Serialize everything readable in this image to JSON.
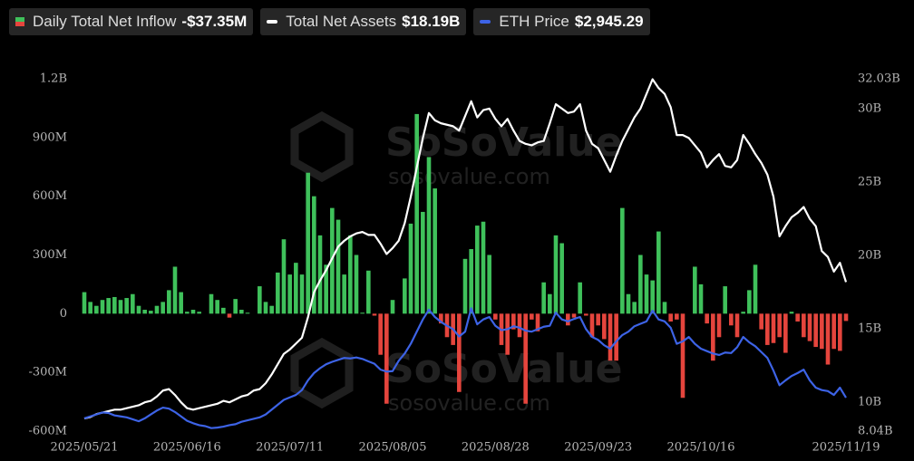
{
  "chart_data": {
    "type": "bar",
    "watermark": "SoSoValue",
    "watermark_url": "sosovalue.com",
    "categories": [
      "2025/05/21",
      null,
      null,
      null,
      null,
      null,
      null,
      null,
      null,
      null,
      null,
      null,
      null,
      null,
      null,
      null,
      null,
      "2025/06/16",
      null,
      null,
      null,
      null,
      null,
      null,
      null,
      null,
      null,
      null,
      null,
      null,
      null,
      null,
      null,
      null,
      "2025/07/11",
      null,
      null,
      null,
      null,
      null,
      null,
      null,
      null,
      null,
      null,
      null,
      null,
      null,
      null,
      null,
      null,
      "2025/08/05",
      null,
      null,
      null,
      null,
      null,
      null,
      null,
      null,
      null,
      null,
      null,
      null,
      null,
      null,
      null,
      null,
      "2025/08/28",
      null,
      null,
      null,
      null,
      null,
      null,
      null,
      null,
      null,
      null,
      null,
      null,
      null,
      null,
      null,
      null,
      "2025/09/23",
      null,
      null,
      null,
      null,
      null,
      null,
      null,
      null,
      null,
      null,
      null,
      null,
      null,
      null,
      null,
      null,
      "2025/10/16",
      null,
      null,
      null,
      null,
      null,
      null,
      null,
      null,
      null,
      null,
      null,
      null,
      null,
      null,
      null,
      null,
      null,
      null,
      null,
      null,
      null,
      null,
      null,
      "2025/11/19"
    ],
    "ylim": [
      -600,
      1200
    ],
    "yticks": [
      {
        "value": -600,
        "label": "-600M"
      },
      {
        "value": -300,
        "label": "-300M"
      },
      0,
      {
        "value": 300,
        "label": "300M"
      },
      {
        "value": 600,
        "label": "600M"
      },
      {
        "value": 900,
        "label": "900M"
      },
      {
        "value": 1200,
        "label": "1.2B"
      }
    ],
    "y2lim": [
      8.04,
      32.03
    ],
    "y2ticks": [
      {
        "value": 8.04,
        "label": "8.04B"
      },
      {
        "value": 10,
        "label": "10B"
      },
      {
        "value": 15,
        "label": "15B"
      },
      {
        "value": 20,
        "label": "20B"
      },
      {
        "value": 25,
        "label": "25B"
      },
      {
        "value": 30,
        "label": "30B"
      },
      {
        "value": 32.03,
        "label": "32.03B"
      }
    ],
    "y3lim": [
      2258,
      9489
    ],
    "grid": false,
    "series": [
      {
        "name": "Daily Total Net Inflow",
        "header_value": "-$37.35M",
        "type": "bar",
        "color": "#3fc15b",
        "negative_color": "#e5453d",
        "values": [
          110,
          60,
          40,
          70,
          80,
          85,
          70,
          80,
          100,
          40,
          20,
          15,
          40,
          60,
          120,
          240,
          110,
          10,
          20,
          10,
          0,
          100,
          70,
          30,
          -20,
          75,
          20,
          5,
          0,
          140,
          60,
          40,
          210,
          380,
          200,
          260,
          200,
          720,
          600,
          400,
          250,
          540,
          480,
          200,
          400,
          300,
          5,
          220,
          -10,
          -210,
          -460,
          70,
          0,
          180,
          460,
          1020,
          520,
          800,
          640,
          -50,
          -120,
          -160,
          -400,
          280,
          330,
          450,
          470,
          300,
          -30,
          -160,
          -210,
          -80,
          -120,
          -460,
          -30,
          -90,
          160,
          100,
          400,
          360,
          -60,
          -20,
          160,
          -10,
          -120,
          -60,
          -130,
          -240,
          -240,
          540,
          100,
          60,
          300,
          200,
          170,
          420,
          60,
          -40,
          -30,
          -430,
          0,
          240,
          150,
          -50,
          -240,
          -120,
          140,
          -60,
          -120,
          10,
          120,
          250,
          -80,
          -160,
          -150,
          -120,
          -200,
          10,
          -40,
          -120,
          -140,
          -170,
          -180,
          -260,
          -180,
          -190,
          -37.35
        ]
      },
      {
        "name": "Total Net Assets",
        "header_value": "$18.19B",
        "type": "line",
        "axis": "y2",
        "color": "#ffffff",
        "values": [
          8.9,
          9.0,
          9.2,
          9.3,
          9.4,
          9.5,
          9.5,
          9.6,
          9.7,
          9.8,
          10.0,
          10.1,
          10.4,
          10.8,
          10.9,
          10.5,
          10.0,
          9.6,
          9.5,
          9.6,
          9.7,
          9.8,
          9.9,
          10.1,
          10.0,
          10.2,
          10.4,
          10.5,
          10.8,
          10.9,
          11.3,
          11.9,
          12.6,
          13.3,
          13.6,
          14.0,
          14.4,
          15.8,
          17.5,
          18.3,
          19.0,
          19.8,
          20.6,
          21.0,
          21.3,
          21.5,
          21.6,
          21.4,
          21.4,
          20.8,
          20.1,
          20.5,
          21.0,
          22.2,
          24.0,
          26.0,
          28.0,
          29.7,
          29.2,
          29.0,
          28.9,
          28.8,
          28.5,
          29.5,
          30.5,
          29.4,
          29.9,
          30.0,
          29.3,
          28.8,
          29.3,
          28.5,
          27.8,
          27.6,
          27.5,
          27.7,
          27.8,
          29.0,
          30.3,
          30.0,
          29.7,
          29.8,
          30.3,
          28.5,
          27.6,
          27.3,
          26.5,
          25.7,
          26.8,
          27.8,
          28.6,
          29.4,
          30.0,
          31.0,
          32.0,
          31.4,
          31.0,
          30.1,
          28.2,
          28.2,
          28.0,
          27.5,
          27.0,
          26.0,
          26.5,
          26.9,
          26.1,
          26.0,
          26.5,
          28.2,
          27.6,
          26.9,
          26.3,
          25.5,
          24.0,
          21.3,
          22.0,
          22.6,
          22.9,
          23.3,
          22.5,
          22.0,
          20.3,
          19.9,
          18.9,
          19.5,
          18.19
        ]
      },
      {
        "name": "ETH Price",
        "header_value": "$2,945.29",
        "type": "line",
        "axis": "y3",
        "color": "#3d63e6",
        "values": [
          2520,
          2560,
          2600,
          2640,
          2630,
          2580,
          2560,
          2540,
          2500,
          2460,
          2520,
          2600,
          2680,
          2740,
          2720,
          2650,
          2560,
          2470,
          2420,
          2380,
          2360,
          2320,
          2330,
          2350,
          2380,
          2400,
          2450,
          2480,
          2510,
          2540,
          2600,
          2700,
          2800,
          2900,
          2950,
          3000,
          3100,
          3300,
          3450,
          3550,
          3630,
          3680,
          3720,
          3760,
          3750,
          3770,
          3740,
          3690,
          3640,
          3520,
          3480,
          3490,
          3700,
          3850,
          4050,
          4300,
          4550,
          4750,
          4600,
          4500,
          4420,
          4350,
          4200,
          4300,
          4780,
          4450,
          4550,
          4600,
          4420,
          4330,
          4350,
          4410,
          4380,
          4320,
          4300,
          4350,
          4400,
          4420,
          4690,
          4550,
          4510,
          4560,
          4600,
          4350,
          4190,
          4130,
          4020,
          3950,
          4100,
          4230,
          4300,
          4410,
          4460,
          4510,
          4730,
          4550,
          4510,
          4380,
          4050,
          4100,
          4190,
          4050,
          3950,
          3900,
          3850,
          3820,
          3870,
          3860,
          3980,
          4190,
          4080,
          4000,
          3880,
          3760,
          3500,
          3200,
          3300,
          3390,
          3450,
          3520,
          3300,
          3150,
          3100,
          3080,
          3000,
          3150,
          2945.29
        ]
      }
    ]
  }
}
